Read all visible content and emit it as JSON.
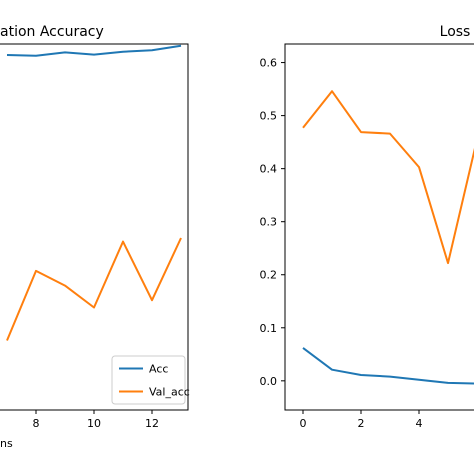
{
  "chart_data": [
    {
      "type": "line",
      "title": "ation Accuracy",
      "xlabel": "ns",
      "ylabel": "",
      "x": [
        7,
        8,
        9,
        10,
        11,
        12,
        13
      ],
      "xticks": [
        8,
        10,
        12
      ],
      "xlim": [
        7,
        13.5
      ],
      "ylim": [
        0,
        1
      ],
      "grid": false,
      "legend": "lower-right",
      "series": [
        {
          "name": "Acc",
          "color": "#1f77b4",
          "values": [
            0.97,
            0.968,
            0.977,
            0.971,
            0.979,
            0.983,
            0.995
          ]
        },
        {
          "name": "Val_acc",
          "color": "#ff7f0e",
          "values": [
            0.19,
            0.38,
            0.34,
            0.28,
            0.46,
            0.3,
            0.47
          ]
        }
      ]
    },
    {
      "type": "line",
      "title": "Loss",
      "xlabel": "",
      "ylabel": "",
      "x": [
        0,
        1,
        2,
        3,
        4,
        5,
        6
      ],
      "xticks": [
        0,
        2,
        4
      ],
      "yticks": [
        0.0,
        0.1,
        0.2,
        0.3,
        0.4,
        0.5,
        0.6
      ],
      "ytick_labels": [
        "0.0",
        "0.1",
        "0.2",
        "0.3",
        "0.4",
        "0.5",
        "0.6"
      ],
      "ylim": [
        -0.055,
        0.635
      ],
      "grid": false,
      "series": [
        {
          "color": "#1f77b4",
          "values": [
            0.062,
            0.021,
            0.011,
            0.008,
            0.002,
            -0.004,
            -0.005
          ]
        },
        {
          "color": "#ff7f0e",
          "values": [
            0.477,
            0.546,
            0.469,
            0.466,
            0.403,
            0.222,
            0.455
          ]
        }
      ]
    }
  ]
}
